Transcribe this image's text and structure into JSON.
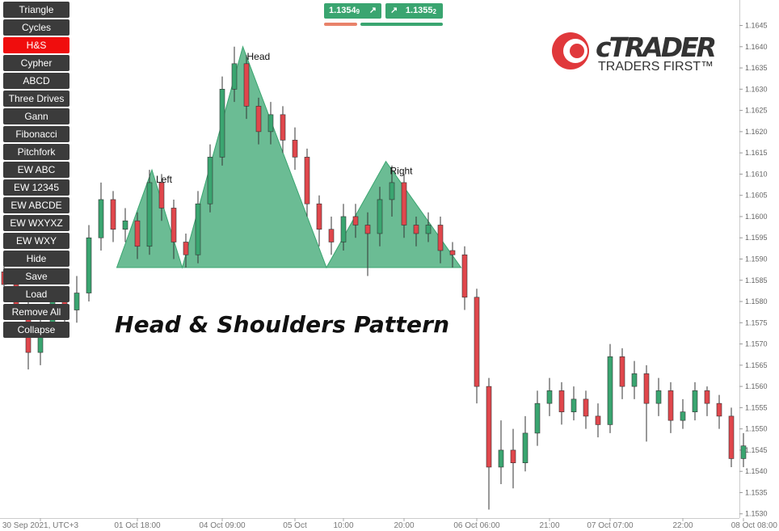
{
  "toolbar": {
    "buttons": [
      "Triangle",
      "Cycles",
      "H&S",
      "Cypher",
      "ABCD",
      "Three Drives",
      "Gann",
      "Fibonacci",
      "Pitchfork",
      "EW ABC",
      "EW 12345",
      "EW ABCDE",
      "EW WXYXZ",
      "EW WXY",
      "Hide",
      "Save",
      "Load",
      "Remove All",
      "Collapse"
    ],
    "active": "H&S"
  },
  "quotes": {
    "sell": "1.1354",
    "sell_pip": "9",
    "sell_icon": "↗",
    "buy": "1.1355",
    "buy_pip": "2",
    "buy_icon": "↗"
  },
  "logo": {
    "brand": "cTRADER",
    "tagline": "TRADERS FIRST™"
  },
  "chart_data": {
    "type": "candlestick",
    "title": "Head & Shoulders Pattern",
    "categories": [
      null,
      null,
      null,
      "30 Sep 2021, UTC+3",
      null,
      null,
      null,
      null,
      null,
      null,
      null,
      "01 Oct 18:00",
      null,
      null,
      null,
      null,
      null,
      null,
      "04 Oct 09:00",
      null,
      null,
      null,
      null,
      null,
      "05 Oct",
      null,
      null,
      null,
      "10:00",
      null,
      null,
      null,
      null,
      "20:00",
      null,
      null,
      null,
      null,
      null,
      "06 Oct 06:00",
      null,
      null,
      null,
      null,
      null,
      "21:00",
      null,
      null,
      null,
      null,
      "07 Oct 07:00",
      null,
      null,
      null,
      null,
      null,
      "22:00",
      null,
      null,
      null,
      null,
      "08 Oct 08:00"
    ],
    "open": [
      1.1587,
      1.1584,
      1.1579,
      1.1568,
      1.1575,
      1.158,
      1.1578,
      1.1582,
      1.1595,
      1.1604,
      1.1597,
      1.1599,
      1.1593,
      1.1608,
      1.1602,
      1.1594,
      1.1591,
      1.1603,
      1.1614,
      1.163,
      1.1636,
      1.1626,
      1.162,
      1.1624,
      1.1618,
      1.1614,
      1.1603,
      1.1597,
      1.1594,
      1.16,
      1.1598,
      1.1596,
      1.1604,
      1.1608,
      1.1598,
      1.1596,
      1.1598,
      1.1592,
      1.1591,
      1.1581,
      1.156,
      1.1541,
      1.1545,
      1.1542,
      1.1549,
      1.1556,
      1.1559,
      1.1554,
      1.1557,
      1.1553,
      1.1551,
      1.1567,
      1.156,
      1.1563,
      1.1556,
      1.1559,
      1.1552,
      1.1554,
      1.1559,
      1.1556,
      1.1553,
      1.1543
    ],
    "high": [
      1.159,
      1.1587,
      1.1582,
      1.1578,
      1.1583,
      1.1583,
      1.1586,
      1.1598,
      1.1608,
      1.1606,
      1.1602,
      1.1601,
      1.1611,
      1.161,
      1.1604,
      1.1596,
      1.1606,
      1.1617,
      1.1633,
      1.164,
      1.1638,
      1.1628,
      1.1627,
      1.1626,
      1.1621,
      1.1616,
      1.1605,
      1.16,
      1.1603,
      1.1603,
      1.1601,
      1.1607,
      1.1612,
      1.161,
      1.16,
      1.1601,
      1.16,
      1.1594,
      1.1593,
      1.1583,
      1.1562,
      1.1552,
      1.155,
      1.1553,
      1.1559,
      1.1562,
      1.1561,
      1.156,
      1.1559,
      1.1556,
      1.157,
      1.1569,
      1.1566,
      1.1565,
      1.1562,
      1.1561,
      1.1557,
      1.1561,
      1.156,
      1.1558,
      1.1555,
      1.1549
    ],
    "low": [
      1.1581,
      1.1576,
      1.1564,
      1.1565,
      1.1572,
      1.1575,
      1.1575,
      1.158,
      1.1592,
      1.1594,
      1.1594,
      1.159,
      1.1591,
      1.1599,
      1.159,
      1.1588,
      1.1589,
      1.1601,
      1.1612,
      1.1627,
      1.1623,
      1.1617,
      1.1617,
      1.1615,
      1.1611,
      1.16,
      1.1593,
      1.1591,
      1.1592,
      1.1595,
      1.1586,
      1.1593,
      1.16,
      1.1595,
      1.1593,
      1.1594,
      1.1589,
      1.1588,
      1.1578,
      1.1556,
      1.1531,
      1.1537,
      1.1536,
      1.154,
      1.1546,
      1.1553,
      1.1551,
      1.1552,
      1.155,
      1.1548,
      1.1549,
      1.1557,
      1.1557,
      1.1547,
      1.1553,
      1.1549,
      1.155,
      1.1552,
      1.1553,
      1.155,
      1.1541,
      1.1541
    ],
    "close": [
      1.1584,
      1.1579,
      1.1568,
      1.1575,
      1.158,
      1.1578,
      1.1582,
      1.1595,
      1.1604,
      1.1597,
      1.1599,
      1.1593,
      1.1608,
      1.1602,
      1.1594,
      1.1591,
      1.1603,
      1.1614,
      1.163,
      1.1636,
      1.1626,
      1.162,
      1.1624,
      1.1618,
      1.1614,
      1.1603,
      1.1597,
      1.1594,
      1.16,
      1.1598,
      1.1596,
      1.1604,
      1.1608,
      1.1598,
      1.1596,
      1.1598,
      1.1592,
      1.1591,
      1.1581,
      1.156,
      1.1541,
      1.1545,
      1.1542,
      1.1549,
      1.1556,
      1.1559,
      1.1554,
      1.1557,
      1.1553,
      1.1551,
      1.1567,
      1.156,
      1.1563,
      1.1556,
      1.1559,
      1.1552,
      1.1554,
      1.1559,
      1.1556,
      1.1553,
      1.1543,
      1.1546
    ],
    "up_color": "#3aa570",
    "down_color": "#e0474c",
    "pattern": {
      "color": "#3aa570",
      "x": [
        9.3,
        12.2,
        14.7,
        19.7,
        26.6,
        31.5,
        37.7
      ],
      "y": [
        1.1588,
        1.1611,
        1.1588,
        1.164,
        1.1588,
        1.1613,
        1.1588
      ],
      "labels": [
        "Left",
        "Head",
        "Right"
      ],
      "label_points": [
        1,
        3,
        5
      ]
    },
    "ylim": [
      1.1529,
      1.1651
    ],
    "yticks": [
      {
        "value": 1.153,
        "label": "1.1530"
      },
      {
        "value": 1.1535,
        "label": "1.1535"
      },
      {
        "value": 1.154,
        "label": "1.1540"
      },
      {
        "value": 1.1545,
        "label": "1.1545"
      },
      {
        "value": 1.155,
        "label": "1.1550"
      },
      {
        "value": 1.1555,
        "label": "1.1555"
      },
      {
        "value": 1.156,
        "label": "1.1560"
      },
      {
        "value": 1.1565,
        "label": "1.1565"
      },
      {
        "value": 1.157,
        "label": "1.1570"
      },
      {
        "value": 1.1575,
        "label": "1.1575"
      },
      {
        "value": 1.158,
        "label": "1.1580"
      },
      {
        "value": 1.1585,
        "label": "1.1585"
      },
      {
        "value": 1.159,
        "label": "1.1590"
      },
      {
        "value": 1.1595,
        "label": "1.1595"
      },
      {
        "value": 1.16,
        "label": "1.1600"
      },
      {
        "value": 1.1605,
        "label": "1.1605"
      },
      {
        "value": 1.161,
        "label": "1.1610"
      },
      {
        "value": 1.1615,
        "label": "1.1615"
      },
      {
        "value": 1.162,
        "label": "1.1620"
      },
      {
        "value": 1.1625,
        "label": "1.1625"
      },
      {
        "value": 1.163,
        "label": "1.1630"
      },
      {
        "value": 1.1635,
        "label": "1.1635"
      },
      {
        "value": 1.164,
        "label": "1.1640"
      },
      {
        "value": 1.1645,
        "label": "1.1645"
      }
    ]
  }
}
